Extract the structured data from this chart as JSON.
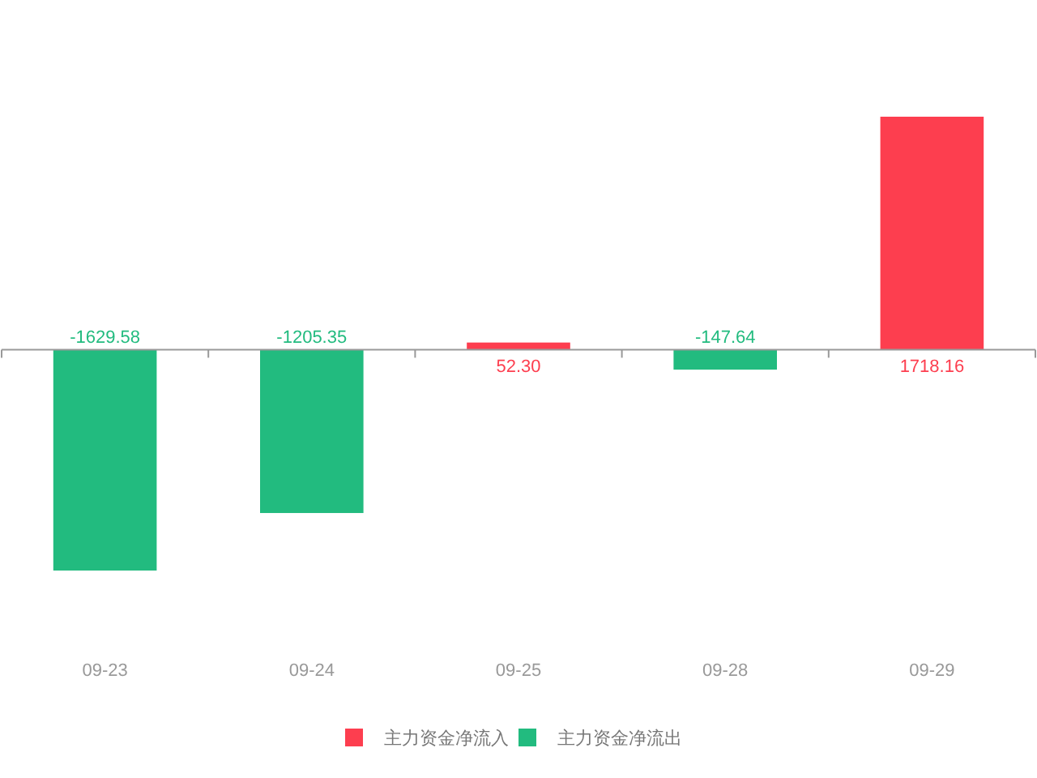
{
  "chart_data": {
    "type": "bar",
    "categories": [
      "09-23",
      "09-24",
      "09-25",
      "09-28",
      "09-29"
    ],
    "stacked": true,
    "series": [
      {
        "name": "主力资金净流入",
        "color": "#fd3e4f",
        "values": [
          null,
          null,
          52.3,
          null,
          1718.16
        ],
        "value_labels": [
          null,
          null,
          "52.30",
          null,
          "1718.16"
        ]
      },
      {
        "name": "主力资金净流出",
        "color": "#22bb7f",
        "values": [
          -1629.58,
          -1205.35,
          null,
          -147.64,
          null
        ],
        "value_labels": [
          "-1629.58",
          "-1205.35",
          null,
          "-147.64",
          null
        ]
      }
    ],
    "tick_labels": "x",
    "legend": "bottom"
  }
}
